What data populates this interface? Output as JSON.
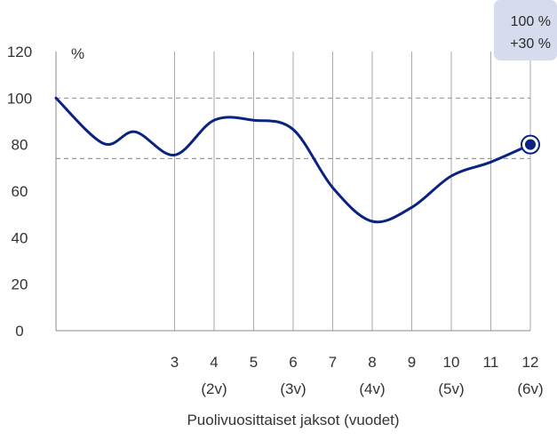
{
  "chart_data": {
    "type": "line",
    "title": "",
    "ylabel": "%",
    "xlabel": "Puolivuosittaiset jaksot (vuodet)",
    "xlim": [
      0,
      12
    ],
    "ylim": [
      0,
      120
    ],
    "y_ticks": [
      0,
      20,
      40,
      60,
      80,
      100,
      120
    ],
    "x_ticks": [
      {
        "value": 3,
        "label": "3",
        "sub": ""
      },
      {
        "value": 4,
        "label": "4",
        "sub": "(2v)"
      },
      {
        "value": 5,
        "label": "5",
        "sub": ""
      },
      {
        "value": 6,
        "label": "6",
        "sub": "(3v)"
      },
      {
        "value": 7,
        "label": "7",
        "sub": ""
      },
      {
        "value": 8,
        "label": "8",
        "sub": "(4v)"
      },
      {
        "value": 9,
        "label": "9",
        "sub": ""
      },
      {
        "value": 10,
        "label": "10",
        "sub": "(5v)"
      },
      {
        "value": 11,
        "label": "11",
        "sub": ""
      },
      {
        "value": 12,
        "label": "12",
        "sub": "(6v)"
      }
    ],
    "vertical_gridlines": true,
    "reference_lines": [
      {
        "y": 100,
        "style": "dashed"
      },
      {
        "y": 74,
        "style": "dashed"
      }
    ],
    "series": [
      {
        "x": [
          0,
          1.2,
          2.0,
          3.0,
          4.0,
          5.0,
          6.0,
          7.0,
          8.0,
          9.0,
          10.0,
          11.0,
          12.0
        ],
        "y": [
          100,
          80.5,
          85.5,
          75.5,
          90.5,
          90.5,
          86.5,
          61.5,
          47,
          53,
          66.5,
          72.5,
          80
        ],
        "color": "#0a2280"
      }
    ],
    "end_marker": {
      "x": 12,
      "y": 80
    },
    "badge_lines": [
      "100 %",
      "+30 %"
    ],
    "colors": {
      "line": "#0a2280",
      "grid": "#aaaaaa",
      "reference": "#999999",
      "badge_bg": "#d6dced"
    }
  }
}
